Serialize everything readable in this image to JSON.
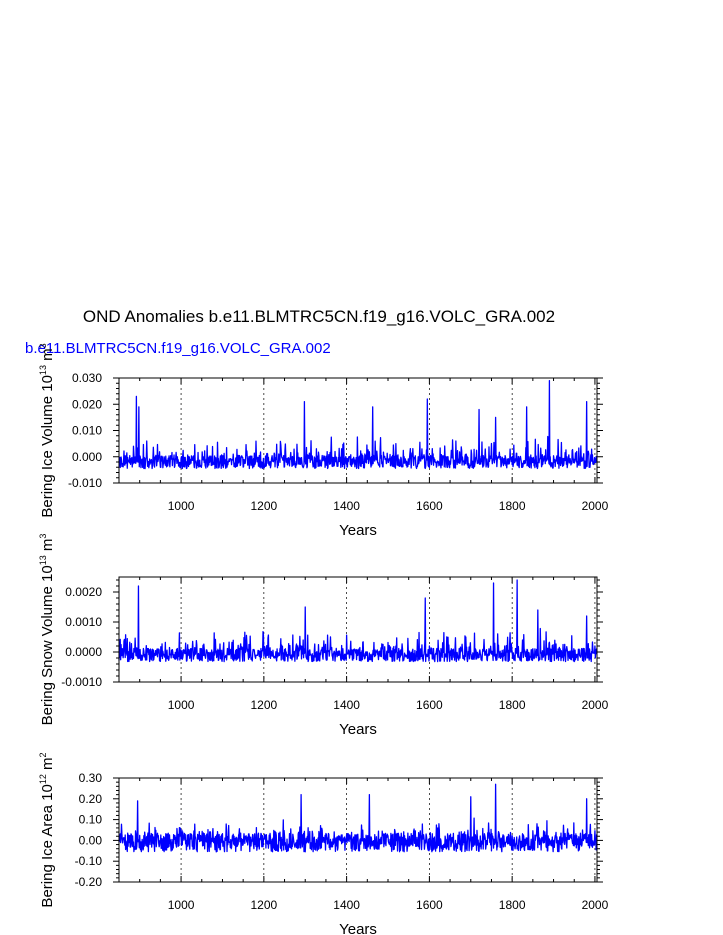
{
  "title": "OND Anomalies b.e11.BLMTRC5CN.f19_g16.VOLC_GRA.002",
  "subtitle": "b.e11.BLMTRC5CN.f19_g16.VOLC_GRA.002",
  "line_color": "#0000ff",
  "chart_data": [
    {
      "type": "line",
      "ylabel": "Bering Ice Volume 10",
      "ylabel_exp": "13",
      "ylabel_unit": "m",
      "ylabel_unit_exp": "3",
      "xlabel": "Years",
      "xlim": [
        850,
        2005
      ],
      "ylim": [
        -0.01,
        0.03
      ],
      "xticks": [
        1000,
        1200,
        1400,
        1600,
        1800,
        2000
      ],
      "xtick_labels": [
        "1000",
        "1200",
        "1400",
        "1600",
        "1800",
        "2000"
      ],
      "yticks": [
        -0.01,
        0.0,
        0.01,
        0.02,
        0.03
      ],
      "ytick_labels": [
        "-0.010",
        "0.000",
        "0.010",
        "0.020",
        "0.030"
      ],
      "grid_x": [
        1000,
        1200,
        1400,
        1600,
        1800,
        2000
      ],
      "baseline": -0.002,
      "noise": 0.0025,
      "spike_scale": 0.008,
      "seed": 11,
      "peaks": [
        [
          892,
          0.023
        ],
        [
          898,
          0.019
        ],
        [
          1298,
          0.021
        ],
        [
          1595,
          0.022
        ],
        [
          1890,
          0.029
        ],
        [
          1980,
          0.021
        ],
        [
          1720,
          0.018
        ],
        [
          1463,
          0.019
        ],
        [
          1760,
          0.015
        ],
        [
          1835,
          0.019
        ]
      ]
    },
    {
      "type": "line",
      "ylabel": "Bering Snow Volume 10",
      "ylabel_exp": "13",
      "ylabel_unit": "m",
      "ylabel_unit_exp": "3",
      "xlabel": "Years",
      "xlim": [
        850,
        2005
      ],
      "ylim": [
        -0.001,
        0.0025
      ],
      "xticks": [
        1000,
        1200,
        1400,
        1600,
        1800,
        2000
      ],
      "xtick_labels": [
        "1000",
        "1200",
        "1400",
        "1600",
        "1800",
        "2000"
      ],
      "yticks": [
        -0.001,
        0.0,
        0.001,
        0.002
      ],
      "ytick_labels": [
        "-0.0010",
        "0.0000",
        "0.0010",
        "0.0020"
      ],
      "grid_x": [
        1000,
        1200,
        1400,
        1600,
        1800,
        2000
      ],
      "baseline": -0.0001,
      "noise": 0.00022,
      "spike_scale": 0.0007,
      "seed": 23,
      "peaks": [
        [
          897,
          0.0022
        ],
        [
          1300,
          0.0015
        ],
        [
          1590,
          0.0018
        ],
        [
          1755,
          0.0023
        ],
        [
          1812,
          0.0024
        ],
        [
          1862,
          0.0014
        ],
        [
          1980,
          0.0012
        ]
      ]
    },
    {
      "type": "line",
      "ylabel": "Bering Ice Area 10",
      "ylabel_exp": "12",
      "ylabel_unit": "m",
      "ylabel_unit_exp": "2",
      "xlabel": "Years",
      "xlim": [
        850,
        2005
      ],
      "ylim": [
        -0.2,
        0.3
      ],
      "xticks": [
        1000,
        1200,
        1400,
        1600,
        1800,
        2000
      ],
      "xtick_labels": [
        "1000",
        "1200",
        "1400",
        "1600",
        "1800",
        "2000"
      ],
      "yticks": [
        -0.2,
        -0.1,
        0.0,
        0.1,
        0.2,
        0.3
      ],
      "ytick_labels": [
        "-0.20",
        "-0.10",
        "0.00",
        "0.10",
        "0.20",
        "0.30"
      ],
      "grid_x": [
        1000,
        1200,
        1400,
        1600,
        1800,
        2000
      ],
      "baseline": -0.01,
      "noise": 0.045,
      "spike_scale": 0.08,
      "seed": 37,
      "peaks": [
        [
          895,
          0.19
        ],
        [
          1290,
          0.22
        ],
        [
          1455,
          0.22
        ],
        [
          1760,
          0.27
        ],
        [
          1980,
          0.2
        ],
        [
          1700,
          0.21
        ]
      ]
    }
  ]
}
